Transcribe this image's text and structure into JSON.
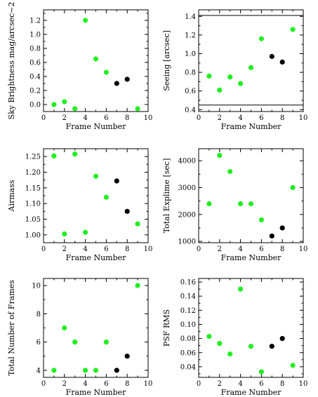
{
  "colors": {
    "accent": "#22ee22",
    "highlight": "#000000",
    "axis": "#000000"
  },
  "chart_data": [
    {
      "type": "scatter",
      "xlabel": "Frame Number",
      "ylabel": "Sky Brightness mag/arcsec~2",
      "xlim": [
        0,
        10
      ],
      "ylim": [
        -0.1,
        1.35
      ],
      "xticks": [
        0,
        2,
        4,
        6,
        8,
        10
      ],
      "yticks": [
        0.0,
        0.2,
        0.4,
        0.6,
        0.8,
        1.0,
        1.2
      ],
      "ytick_labels": [
        "0.0",
        "0.2",
        "0.4",
        "0.6",
        "0.8",
        "1.0",
        "1.2"
      ],
      "series": [
        {
          "color": "#22ee22",
          "x": [
            1,
            2,
            3,
            4,
            5,
            6,
            9
          ],
          "y": [
            0.0,
            0.04,
            -0.06,
            1.2,
            0.65,
            0.46,
            -0.06
          ]
        },
        {
          "color": "#000000",
          "x": [
            7,
            8
          ],
          "y": [
            0.3,
            0.36
          ]
        }
      ],
      "hlines": []
    },
    {
      "type": "scatter",
      "xlabel": "Frame Number",
      "ylabel": "Seeing [arcsec]",
      "xlim": [
        0,
        10
      ],
      "ylim": [
        0.38,
        1.47
      ],
      "xticks": [
        0,
        2,
        4,
        6,
        8,
        10
      ],
      "yticks": [
        0.4,
        0.6,
        0.8,
        1.0,
        1.2,
        1.4
      ],
      "ytick_labels": [
        "0.4",
        "0.6",
        "0.8",
        "1.0",
        "1.2",
        "1.4"
      ],
      "series": [
        {
          "color": "#22ee22",
          "x": [
            1,
            2,
            3,
            4,
            5,
            6,
            9
          ],
          "y": [
            0.76,
            0.61,
            0.75,
            0.68,
            0.85,
            1.16,
            1.26
          ]
        },
        {
          "color": "#000000",
          "x": [
            7,
            8
          ],
          "y": [
            0.97,
            0.91
          ]
        }
      ],
      "hlines": [
        1.41,
        0.45
      ]
    },
    {
      "type": "scatter",
      "xlabel": "Frame Number",
      "ylabel": "Airmass",
      "xlim": [
        0,
        10
      ],
      "ylim": [
        0.975,
        1.275
      ],
      "xticks": [
        0,
        2,
        4,
        6,
        8,
        10
      ],
      "yticks": [
        1.0,
        1.05,
        1.1,
        1.15,
        1.2,
        1.25
      ],
      "ytick_labels": [
        "1.00",
        "1.05",
        "1.10",
        "1.15",
        "1.20",
        "1.25"
      ],
      "series": [
        {
          "color": "#22ee22",
          "x": [
            1,
            2,
            3,
            4,
            5,
            6,
            9
          ],
          "y": [
            1.252,
            1.003,
            1.258,
            1.008,
            1.187,
            1.12,
            1.035
          ]
        },
        {
          "color": "#000000",
          "x": [
            7,
            8
          ],
          "y": [
            1.172,
            1.075
          ]
        }
      ],
      "hlines": []
    },
    {
      "type": "scatter",
      "xlabel": "Frame Number",
      "ylabel": "Total Explime [sec]",
      "xlim": [
        0,
        10
      ],
      "ylim": [
        950,
        4450
      ],
      "xticks": [
        0,
        2,
        4,
        6,
        8,
        10
      ],
      "yticks": [
        1000,
        2000,
        3000,
        4000
      ],
      "ytick_labels": [
        "1000",
        "2000",
        "3000",
        "4000"
      ],
      "series": [
        {
          "color": "#22ee22",
          "x": [
            1,
            2,
            3,
            4,
            5,
            6,
            9
          ],
          "y": [
            2400,
            4200,
            3600,
            2400,
            2400,
            1800,
            3000
          ]
        },
        {
          "color": "#000000",
          "x": [
            7,
            8
          ],
          "y": [
            1200,
            1500
          ]
        }
      ],
      "hlines": []
    },
    {
      "type": "scatter",
      "xlabel": "Frame Number",
      "ylabel": "Total Number of Frames",
      "xlim": [
        0,
        10
      ],
      "ylim": [
        3.5,
        10.5
      ],
      "xticks": [
        0,
        2,
        4,
        6,
        8,
        10
      ],
      "yticks": [
        4,
        6,
        8,
        10
      ],
      "ytick_labels": [
        "4",
        "6",
        "8",
        "10"
      ],
      "series": [
        {
          "color": "#22ee22",
          "x": [
            1,
            2,
            3,
            4,
            5,
            6,
            9
          ],
          "y": [
            4,
            7,
            6,
            4,
            4,
            6,
            10
          ]
        },
        {
          "color": "#000000",
          "x": [
            7,
            8
          ],
          "y": [
            4,
            5
          ]
        }
      ],
      "hlines": []
    },
    {
      "type": "scatter",
      "xlabel": "Frame Number",
      "ylabel": "PSF RMS",
      "xlim": [
        0,
        10
      ],
      "ylim": [
        0.025,
        0.165
      ],
      "xticks": [
        0,
        2,
        4,
        6,
        8,
        10
      ],
      "yticks": [
        0.04,
        0.06,
        0.08,
        0.1,
        0.12,
        0.14,
        0.16
      ],
      "ytick_labels": [
        "0.04",
        "0.06",
        "0.08",
        "0.10",
        "0.12",
        "0.14",
        "0.16"
      ],
      "series": [
        {
          "color": "#22ee22",
          "x": [
            1,
            2,
            3,
            4,
            5,
            6,
            9
          ],
          "y": [
            0.083,
            0.073,
            0.058,
            0.15,
            0.069,
            0.033,
            0.042
          ]
        },
        {
          "color": "#000000",
          "x": [
            7,
            8
          ],
          "y": [
            0.069,
            0.08
          ]
        }
      ],
      "hlines": []
    }
  ]
}
